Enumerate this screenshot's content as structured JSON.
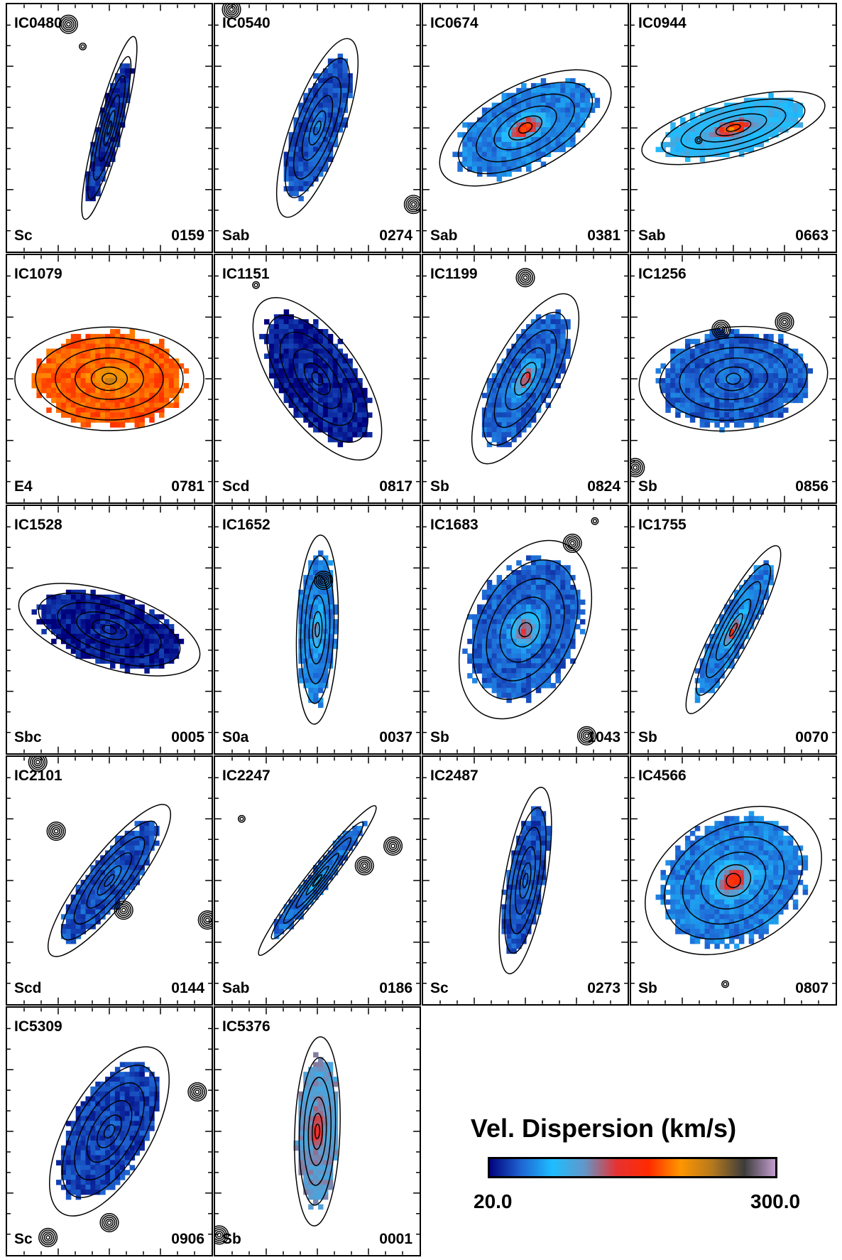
{
  "chart_data": {
    "type": "heatmap",
    "colorbar": {
      "title": "Vel. Dispersion (km/s)",
      "min_label": "20.0",
      "max_label": "300.0",
      "vmin": 20.0,
      "vmax": 300.0,
      "colors": [
        "#00007a",
        "#1e64d2",
        "#1ebeff",
        "#6496c8",
        "#e63232",
        "#ff2a00",
        "#ff9600",
        "#b4781e",
        "#3c3c3c",
        "#c8a0d2"
      ]
    },
    "panels": [
      {
        "name": "IC0480",
        "type": "Sc",
        "id": "0159",
        "pa": -75,
        "axis_ratio": 0.14,
        "center_sigma": 50,
        "outer_sigma": 35,
        "stars": [
          [
            0.3,
            0.08,
            1
          ],
          [
            0.37,
            0.17,
            0
          ]
        ]
      },
      {
        "name": "IC0540",
        "type": "Sab",
        "id": "0274",
        "pa": -70,
        "axis_ratio": 0.28,
        "center_sigma": 60,
        "outer_sigma": 45,
        "stars": [
          [
            0.08,
            0.02,
            1
          ],
          [
            0.97,
            0.81,
            1
          ]
        ]
      },
      {
        "name": "IC0674",
        "type": "Sab",
        "id": "0381",
        "pa": -28,
        "axis_ratio": 0.45,
        "center_sigma": 185,
        "outer_sigma": 60,
        "stars": []
      },
      {
        "name": "IC0944",
        "type": "Sab",
        "id": "0663",
        "pa": -15,
        "axis_ratio": 0.3,
        "center_sigma": 210,
        "outer_sigma": 90,
        "stars": [
          [
            0.33,
            0.55,
            0
          ]
        ]
      },
      {
        "name": "IC1079",
        "type": "E4",
        "id": "0781",
        "pa": 0,
        "axis_ratio": 0.55,
        "center_sigma": 220,
        "outer_sigma": 190,
        "stars": []
      },
      {
        "name": "IC1151",
        "type": "Scd",
        "id": "0817",
        "pa": 55,
        "axis_ratio": 0.45,
        "center_sigma": 35,
        "outer_sigma": 30,
        "stars": [
          [
            0.2,
            0.12,
            0
          ]
        ]
      },
      {
        "name": "IC1199",
        "type": "Sb",
        "id": "0824",
        "pa": -62,
        "axis_ratio": 0.36,
        "center_sigma": 140,
        "outer_sigma": 50,
        "stars": [
          [
            0.5,
            0.09,
            1
          ]
        ]
      },
      {
        "name": "IC1256",
        "type": "Sb",
        "id": "0856",
        "pa": -5,
        "axis_ratio": 0.55,
        "center_sigma": 55,
        "outer_sigma": 50,
        "stars": [
          [
            0.44,
            0.3,
            1
          ],
          [
            0.75,
            0.27,
            1
          ],
          [
            0.02,
            0.86,
            1
          ]
        ]
      },
      {
        "name": "IC1528",
        "type": "Sbc",
        "id": "0005",
        "pa": 18,
        "axis_ratio": 0.4,
        "center_sigma": 35,
        "outer_sigma": 28,
        "stars": []
      },
      {
        "name": "IC1652",
        "type": "S0a",
        "id": "0037",
        "pa": -88,
        "axis_ratio": 0.22,
        "center_sigma": 120,
        "outer_sigma": 60,
        "stars": [
          [
            0.53,
            0.3,
            1
          ]
        ]
      },
      {
        "name": "IC1683",
        "type": "Sb",
        "id": "1043",
        "pa": -65,
        "axis_ratio": 0.62,
        "center_sigma": 140,
        "outer_sigma": 50,
        "stars": [
          [
            0.73,
            0.15,
            1
          ],
          [
            0.84,
            0.06,
            0
          ],
          [
            0.8,
            0.93,
            1
          ]
        ]
      },
      {
        "name": "IC1755",
        "type": "Sb",
        "id": "0070",
        "pa": -62,
        "axis_ratio": 0.2,
        "center_sigma": 160,
        "outer_sigma": 60,
        "stars": []
      },
      {
        "name": "IC2101",
        "type": "Scd",
        "id": "0144",
        "pa": -52,
        "axis_ratio": 0.26,
        "center_sigma": 55,
        "outer_sigma": 45,
        "stars": [
          [
            0.24,
            0.3,
            1
          ],
          [
            0.57,
            0.62,
            1
          ],
          [
            0.98,
            0.66,
            1
          ],
          [
            0.15,
            0.02,
            1
          ]
        ]
      },
      {
        "name": "IC2247",
        "type": "Sab",
        "id": "0186",
        "pa": -52,
        "axis_ratio": 0.12,
        "center_sigma": 90,
        "outer_sigma": 55,
        "stars": [
          [
            0.87,
            0.36,
            1
          ],
          [
            0.73,
            0.44,
            1
          ],
          [
            0.13,
            0.25,
            0
          ]
        ]
      },
      {
        "name": "IC2487",
        "type": "Sc",
        "id": "0273",
        "pa": -80,
        "axis_ratio": 0.22,
        "center_sigma": 55,
        "outer_sigma": 45,
        "stars": []
      },
      {
        "name": "IC4566",
        "type": "Sb",
        "id": "0807",
        "pa": -30,
        "axis_ratio": 0.7,
        "center_sigma": 170,
        "outer_sigma": 60,
        "stars": [
          [
            0.46,
            0.92,
            0
          ]
        ]
      },
      {
        "name": "IC5309",
        "type": "Sc",
        "id": "0906",
        "pa": -60,
        "axis_ratio": 0.45,
        "center_sigma": 45,
        "outer_sigma": 40,
        "stars": [
          [
            0.5,
            0.87,
            1
          ],
          [
            0.2,
            0.93,
            1
          ],
          [
            0.93,
            0.34,
            1
          ]
        ]
      },
      {
        "name": "IC5376",
        "type": "Sb",
        "id": "0001",
        "pa": -88,
        "axis_ratio": 0.24,
        "center_sigma": 170,
        "outer_sigma": 110,
        "stars": [
          [
            0.02,
            0.92,
            1
          ]
        ]
      }
    ]
  }
}
